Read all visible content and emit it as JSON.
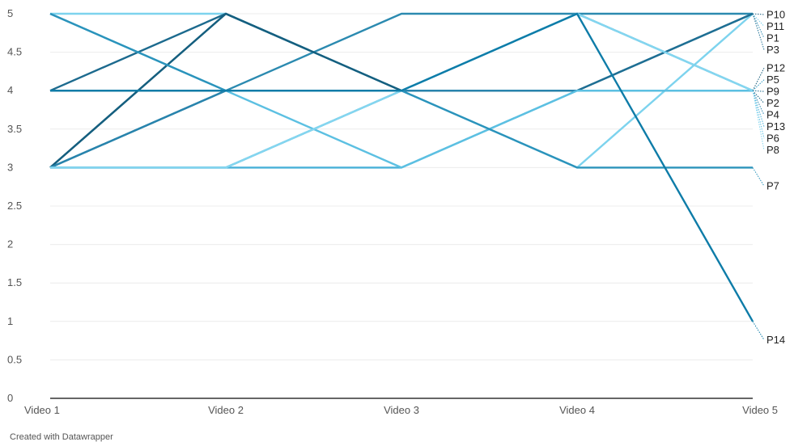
{
  "chart_data": {
    "type": "line",
    "categories": [
      "Video 1",
      "Video 2",
      "Video 3",
      "Video 4",
      "Video 5"
    ],
    "ylim": [
      0,
      5
    ],
    "yticks": [
      "0",
      "0.5",
      "1",
      "1.5",
      "2",
      "2.5",
      "3",
      "3.5",
      "4",
      "4.5",
      "5"
    ],
    "grid": true,
    "series": [
      {
        "name": "P10",
        "values": [
          3,
          5,
          4,
          4,
          5
        ],
        "color": "#1a5f80"
      },
      {
        "name": "P11",
        "values": [
          5,
          5,
          4,
          3,
          5
        ],
        "color": "#7dd3ee"
      },
      {
        "name": "P1",
        "values": [
          4,
          4,
          5,
          5,
          5
        ],
        "color": "#2b8ab0"
      },
      {
        "name": "P3",
        "values": [
          3,
          4,
          4,
          4,
          5
        ],
        "color": "#1e6f94"
      },
      {
        "name": "P12",
        "values": [
          4,
          4,
          4,
          4,
          4
        ],
        "color": "#135a78"
      },
      {
        "name": "P5",
        "values": [
          3,
          3,
          4,
          5,
          4
        ],
        "color": "#2f99c2"
      },
      {
        "name": "P9",
        "values": [
          4,
          5,
          4,
          4,
          4
        ],
        "color": "#1c6a8e"
      },
      {
        "name": "P2",
        "values": [
          3,
          5,
          4,
          4,
          4
        ],
        "color": "#155f7f"
      },
      {
        "name": "P4",
        "values": [
          3,
          4,
          4,
          4,
          4
        ],
        "color": "#2884ad"
      },
      {
        "name": "P13",
        "values": [
          3,
          3,
          3,
          4,
          4
        ],
        "color": "#48b0d8"
      },
      {
        "name": "P6",
        "values": [
          5,
          4,
          3,
          4,
          4
        ],
        "color": "#5cc0e2"
      },
      {
        "name": "P8",
        "values": [
          3,
          3,
          4,
          5,
          4
        ],
        "color": "#84d6f0"
      },
      {
        "name": "P7",
        "values": [
          5,
          4,
          4,
          3,
          3
        ],
        "color": "#2b93bb"
      },
      {
        "name": "P14",
        "values": [
          4,
          4,
          4,
          5,
          1
        ],
        "color": "#0e7ca8"
      }
    ]
  },
  "footer": {
    "credit": "Created with Datawrapper"
  }
}
